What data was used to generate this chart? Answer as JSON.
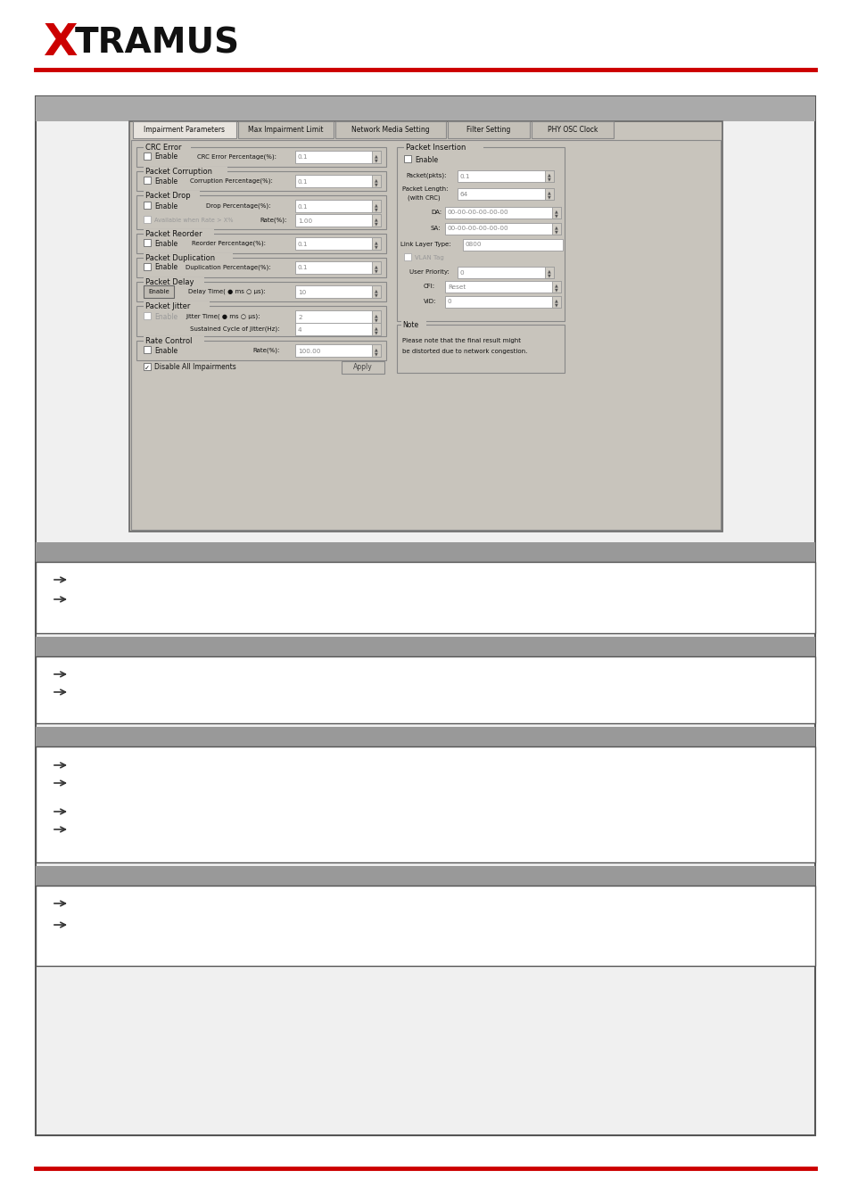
{
  "page_bg": "#ffffff",
  "header_line_color": "#cc0000",
  "logo_x_color": "#cc0000",
  "tabs": [
    "Impairment Parameters",
    "Max Impairment Limit",
    "Network Media Setting",
    "Filter Setting",
    "PHY OSC Clock"
  ],
  "bottom_line_color": "#cc0000"
}
